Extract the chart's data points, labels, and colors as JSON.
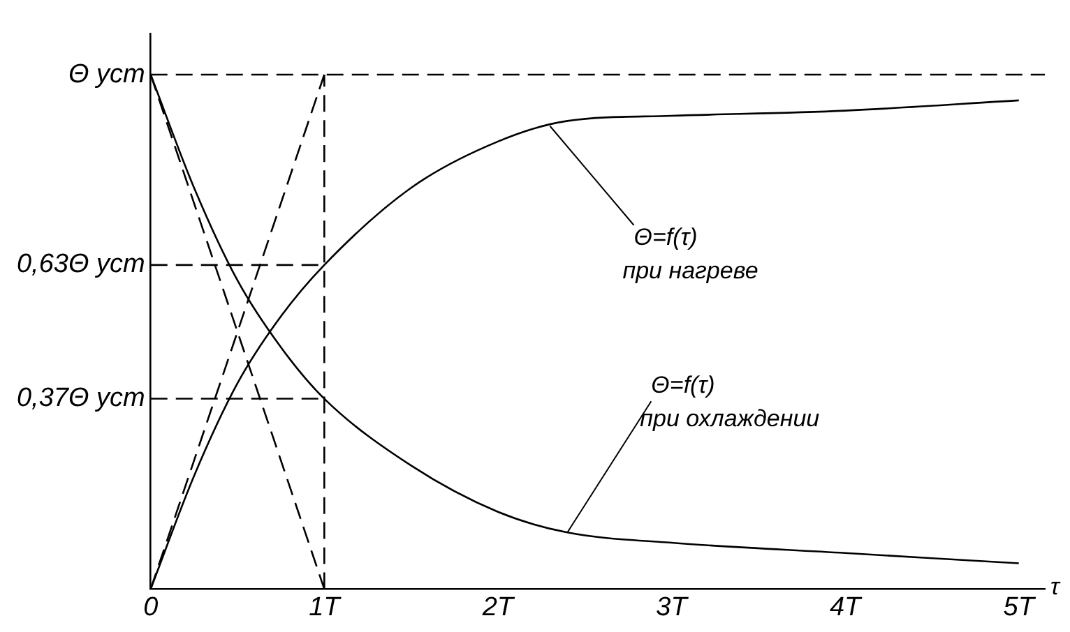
{
  "chart_data": {
    "type": "line",
    "xlabel": "τ",
    "xlim": [
      0,
      5.15
    ],
    "ylim": [
      0,
      1.08
    ],
    "xticks": [
      0,
      {
        "value": 1,
        "label": "1T"
      },
      {
        "value": 2,
        "label": "2T"
      },
      {
        "value": 3,
        "label": "3T"
      },
      {
        "value": 4,
        "label": "4T"
      },
      {
        "value": 5,
        "label": "5T"
      }
    ],
    "yticks": [
      {
        "value": 0.37,
        "label": "0,37Θ уст"
      },
      {
        "value": 0.63,
        "label": "0,63Θ уст"
      },
      {
        "value": 1,
        "label": "Θ уст"
      }
    ],
    "grid": false,
    "legend": false,
    "marker": "none",
    "series": [
      {
        "color": "#000000",
        "line_style": "solid",
        "x": [
          0,
          0.25,
          0.5,
          0.75,
          1,
          1.5,
          2,
          2.4,
          3,
          4,
          5
        ],
        "values": [
          0,
          0.22,
          0.4,
          0.53,
          0.63,
          0.78,
          0.87,
          0.91,
          0.92,
          0.93,
          0.95
        ]
      },
      {
        "color": "#000000",
        "line_style": "solid",
        "x": [
          0,
          0.25,
          0.5,
          0.75,
          1,
          1.5,
          2,
          2.4,
          3,
          4,
          5
        ],
        "values": [
          1,
          0.78,
          0.6,
          0.47,
          0.37,
          0.24,
          0.15,
          0.11,
          0.09,
          0.07,
          0.05
        ]
      },
      {
        "color": "#000000",
        "line_style": "dashed",
        "x": [
          0,
          1
        ],
        "values": [
          0,
          1
        ]
      },
      {
        "color": "#000000",
        "line_style": "dashed",
        "x": [
          0,
          1
        ],
        "values": [
          1,
          0
        ]
      },
      {
        "color": "#000000",
        "line_style": "dashed",
        "x": [
          0,
          1
        ],
        "values": [
          0.63,
          0.63
        ]
      },
      {
        "color": "#000000",
        "line_style": "dashed",
        "x": [
          0,
          1
        ],
        "values": [
          0.37,
          0.37
        ]
      },
      {
        "color": "#000000",
        "line_style": "dashed",
        "x": [
          1,
          1
        ],
        "values": [
          0,
          1
        ]
      }
    ],
    "ref_lines": [
      {
        "axis": "y",
        "value": 1,
        "line_style": "dashed",
        "color": "#000000"
      }
    ],
    "annotations": [
      {
        "text": "Θ=f(τ)\nпри нагреве",
        "x": 2.3,
        "y": 0.9
      },
      {
        "text": "Θ=f(τ)\nпри охлаждении",
        "x": 2.4,
        "y": 0.11
      }
    ]
  }
}
